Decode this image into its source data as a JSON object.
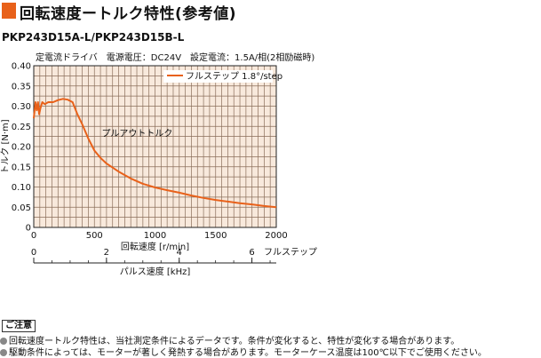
{
  "header": {
    "title": "回転速度ートルク特性(参考値)"
  },
  "model": "PKP243D15A-L/PKP243D15B-L",
  "conditions": "定電流ドライバ　電源電圧：DC24V　設定電流：1.5A/相(2相励磁時)",
  "notes": {
    "title": "ご注意",
    "items": [
      "回転速度ートルク特性は、当社測定条件によるデータです。条件が変化すると、特性が変化する場合があります。",
      "駆動条件によっては、モーターが著しく発熱する場合があります。モーターケース温度は100℃以下でご使用ください。"
    ]
  },
  "chart_data": {
    "type": "line",
    "xlabel": "回転速度 [r/min]",
    "ylabel": "トルク [N·m]",
    "xlim": [
      0,
      2000
    ],
    "ylim": [
      0,
      0.4
    ],
    "x_ticks": [
      "0",
      "500",
      "1000",
      "1500",
      "2000"
    ],
    "y_ticks": [
      "0",
      "0.05",
      "0.10",
      "0.15",
      "0.20",
      "0.25",
      "0.30",
      "0.35",
      "0.40"
    ],
    "secondary_axis": {
      "label": "パルス速度 [kHz]",
      "unit_label": "フルステップ",
      "range": [
        0,
        6.67
      ],
      "ticks": [
        "0",
        "2",
        "4",
        "6"
      ]
    },
    "grid": true,
    "legend": "top-right",
    "annotation": "プルアウトトルク",
    "series": [
      {
        "name": "フルステップ 1.8°/step",
        "color": "#e8611a",
        "x": [
          0,
          15,
          25,
          35,
          45,
          55,
          70,
          90,
          120,
          160,
          200,
          240,
          280,
          320,
          360,
          400,
          450,
          500,
          550,
          600,
          700,
          800,
          900,
          1000,
          1100,
          1200,
          1300,
          1400,
          1500,
          1600,
          1700,
          1800,
          1900,
          2000
        ],
        "y": [
          0.27,
          0.31,
          0.29,
          0.31,
          0.28,
          0.295,
          0.31,
          0.305,
          0.31,
          0.31,
          0.315,
          0.318,
          0.316,
          0.31,
          0.28,
          0.255,
          0.22,
          0.19,
          0.172,
          0.158,
          0.138,
          0.121,
          0.108,
          0.099,
          0.092,
          0.086,
          0.079,
          0.073,
          0.068,
          0.064,
          0.06,
          0.057,
          0.053,
          0.05
        ]
      }
    ]
  }
}
